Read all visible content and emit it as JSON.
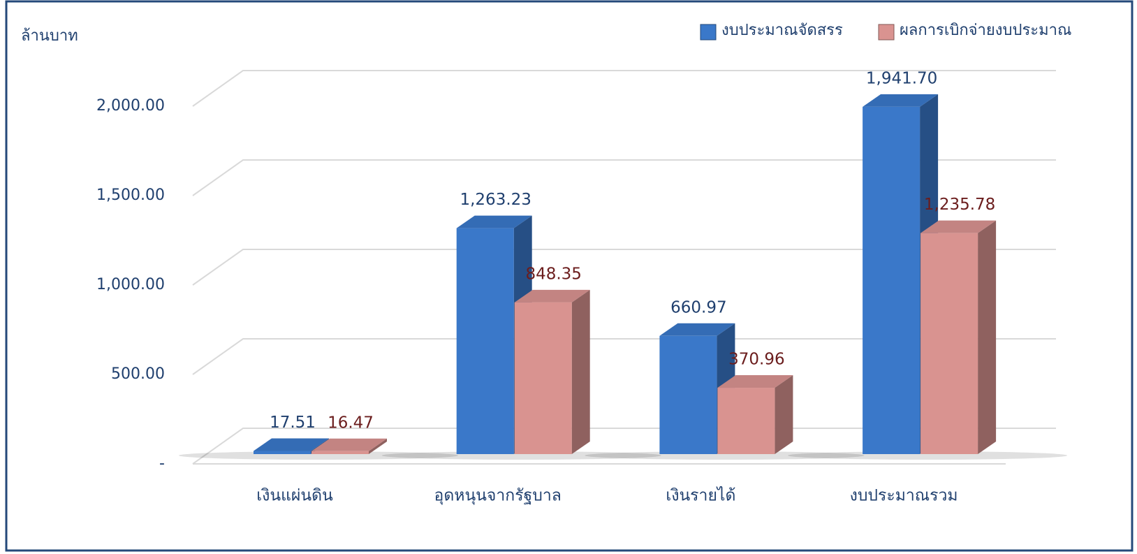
{
  "chart_data": {
    "type": "bar3d",
    "y_axis_label": "ล้านบาท",
    "categories": [
      "เงินแผ่นดิน",
      "อุดหนุนจากรัฐบาล",
      "เงินรายได้",
      "งบประมาณรวม"
    ],
    "series": [
      {
        "name": "งบประมาณจัดสรร",
        "color": "#3a78c9",
        "values": [
          17.51,
          1263.23,
          660.97,
          1941.7
        ],
        "value_labels": [
          "17.51",
          "1,263.23",
          "660.97",
          "1,941.70"
        ]
      },
      {
        "name": "ผลการเบิกจ่ายงบประมาณ",
        "color": "#d99390",
        "values": [
          16.47,
          848.35,
          370.96,
          1235.78
        ],
        "value_labels": [
          "16.47",
          "848.35",
          "370.96",
          "1,235.78"
        ]
      }
    ],
    "ylim": [
      0,
      2000
    ],
    "yticks": [
      {
        "value": 0,
        "label": "-"
      },
      {
        "value": 500,
        "label": "500.00"
      },
      {
        "value": 1000,
        "label": "1,000.00"
      },
      {
        "value": 1500,
        "label": "1,500.00"
      },
      {
        "value": 2000,
        "label": "2,000.00"
      }
    ],
    "grid": true,
    "legend": "top-right"
  }
}
